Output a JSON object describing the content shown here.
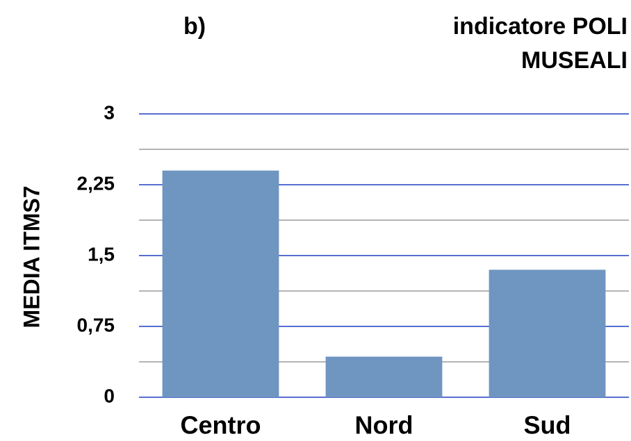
{
  "chart_data": {
    "type": "bar",
    "panel_label": "b)",
    "title": [
      "indicatore POLI",
      "MUSEALI"
    ],
    "y_label": "MEDIA ITMS7",
    "categories": [
      "Centro",
      "Nord",
      "Sud"
    ],
    "values": [
      2.4,
      0.43,
      1.35
    ],
    "color": "#6f95c1",
    "ylim": [
      0,
      3
    ],
    "yticks": [
      0,
      {
        "value": 0.75,
        "label": "0,75"
      },
      {
        "value": 1.5,
        "label": "1,5"
      },
      {
        "value": 2.25,
        "label": "2,25"
      },
      3
    ],
    "minor_yticks": [
      0.375,
      1.125,
      1.875,
      2.625
    ],
    "grid": true,
    "grid_color": "#1f3fc4",
    "minor_grid_color": "#b4b4b4"
  }
}
